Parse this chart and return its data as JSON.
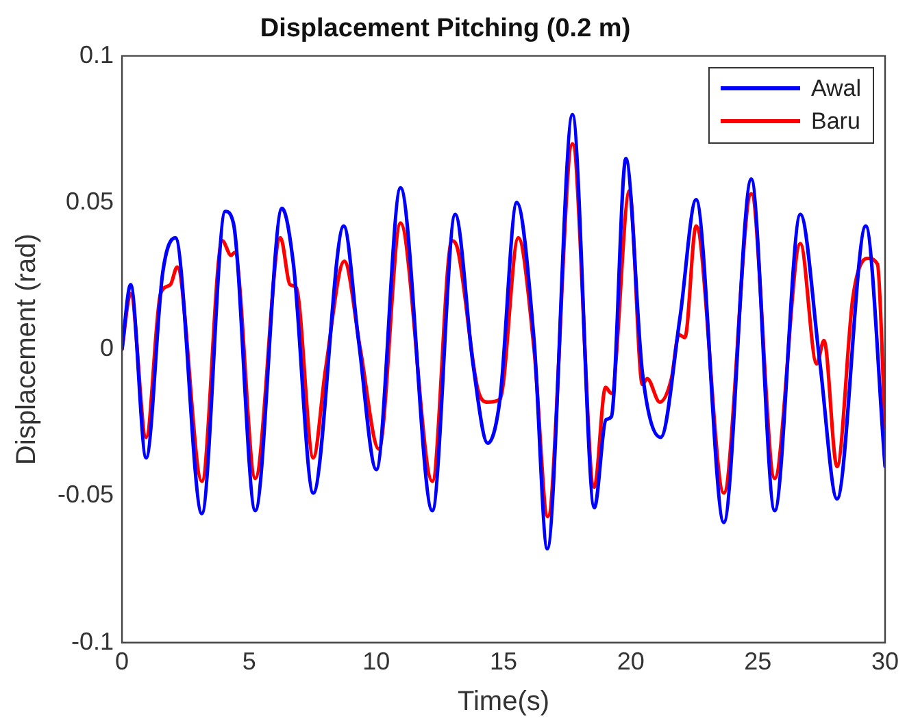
{
  "chart_data": {
    "type": "line",
    "title": "Displacement Pitching (0.2 m)",
    "xlabel": "Time(s)",
    "ylabel": "Displacement (rad)",
    "xlim": [
      0,
      30
    ],
    "xticks": [
      0,
      5,
      10,
      15,
      20,
      25,
      30
    ],
    "ylim": [
      -0.1,
      0.1
    ],
    "yticks": [
      -0.1,
      -0.05,
      0,
      0.05,
      0.1
    ],
    "grid": false,
    "legend": "top right",
    "marker": "none",
    "line_style": "solid",
    "series": [
      {
        "name": "Awal",
        "color": "#0000ff",
        "x": [
          0,
          0.34,
          0.95,
          1.6,
          2.1,
          3.14,
          4.06,
          4.38,
          5.24,
          6.29,
          6.74,
          7.52,
          8.72,
          9.3,
          10.0,
          10.95,
          12.2,
          13.1,
          13.8,
          14.38,
          14.86,
          15.52,
          16.2,
          16.72,
          17.71,
          18.57,
          19.03,
          19.24,
          19.81,
          20.46,
          21.18,
          21.94,
          22.57,
          23.66,
          24.74,
          25.66,
          26.67,
          27.43,
          28.11,
          29.24,
          30
        ],
        "values": [
          0,
          0.022,
          -0.037,
          0.026,
          0.038,
          -0.056,
          0.047,
          0.043,
          -0.055,
          0.048,
          0.029,
          -0.049,
          0.042,
          0.003,
          -0.041,
          0.055,
          -0.055,
          0.046,
          -0.005,
          -0.032,
          -0.017,
          0.05,
          0.003,
          -0.068,
          0.08,
          -0.054,
          -0.024,
          -0.023,
          0.065,
          -0.008,
          -0.03,
          0.011,
          0.051,
          -0.059,
          0.058,
          -0.055,
          0.046,
          -0.004,
          -0.051,
          0.042,
          -0.04
        ]
      },
      {
        "name": "Baru",
        "color": "#ff0000",
        "x": [
          0,
          0.34,
          0.95,
          1.52,
          1.9,
          2.17,
          3.14,
          3.94,
          4.29,
          4.43,
          5.24,
          6.23,
          6.61,
          6.85,
          7.52,
          8.0,
          8.74,
          9.37,
          10.1,
          10.95,
          12.2,
          12.97,
          13.2,
          14.0,
          14.38,
          14.86,
          15.58,
          16.2,
          16.74,
          17.71,
          18.57,
          19.01,
          19.24,
          19.95,
          20.46,
          20.65,
          21.14,
          21.6,
          21.89,
          22.13,
          22.57,
          23.66,
          24.74,
          25.66,
          26.67,
          27.31,
          27.6,
          28.11,
          28.74,
          29.3,
          29.7,
          30
        ],
        "values": [
          0,
          0.019,
          -0.03,
          0.019,
          0.022,
          0.028,
          -0.045,
          0.037,
          0.032,
          0.033,
          -0.044,
          0.038,
          0.022,
          0.021,
          -0.037,
          -0.007,
          0.03,
          0,
          -0.034,
          0.043,
          -0.045,
          0.037,
          0.034,
          -0.014,
          -0.018,
          -0.017,
          0.038,
          0,
          -0.057,
          0.07,
          -0.047,
          -0.013,
          -0.015,
          0.054,
          -0.012,
          -0.01,
          -0.018,
          -0.01,
          0.005,
          0.004,
          0.042,
          -0.049,
          0.053,
          -0.044,
          0.036,
          -0.005,
          0.003,
          -0.04,
          0.018,
          0.031,
          0.029,
          -0.027
        ]
      }
    ]
  }
}
